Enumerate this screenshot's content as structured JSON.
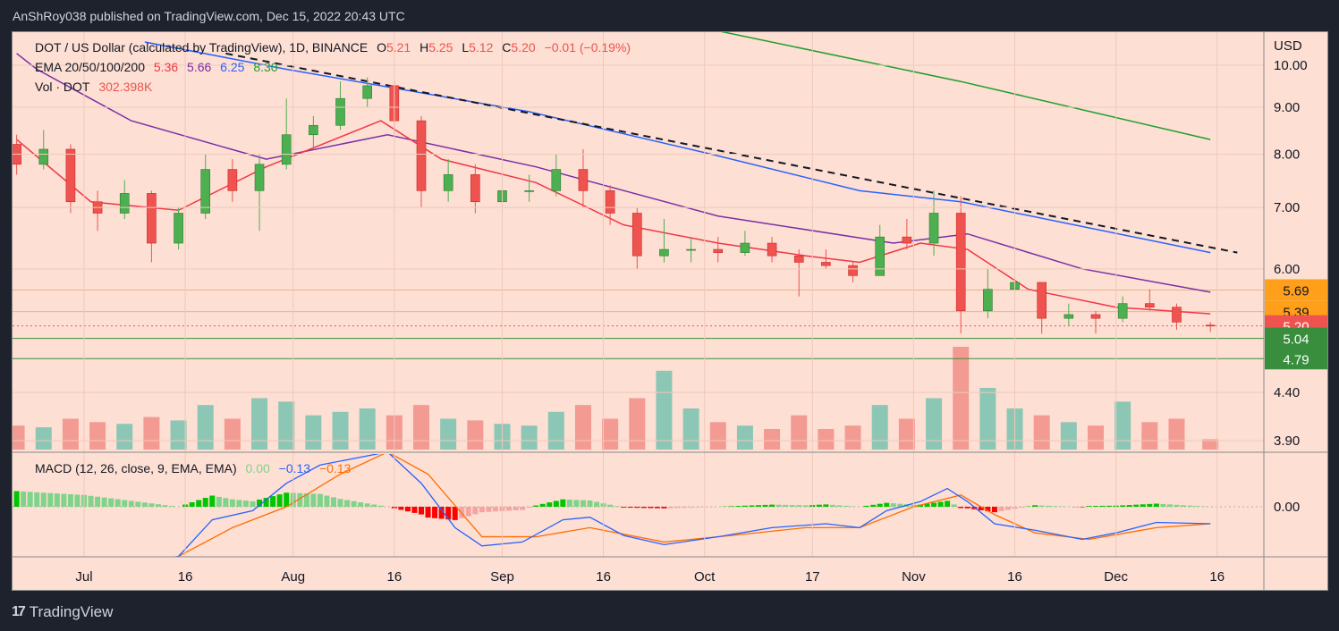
{
  "header": {
    "published": "AnShRoy038 published on TradingView.com, Dec 15, 2022 20:43 UTC"
  },
  "legend": {
    "symbol": "DOT / US Dollar (calculated by TradingView), 1D, BINANCE",
    "o_label": "O",
    "o": "5.21",
    "h_label": "H",
    "h": "5.25",
    "l_label": "L",
    "l": "5.12",
    "c_label": "C",
    "c": "5.20",
    "change": "−0.01 (−0.19%)",
    "ema_label": "EMA 20/50/100/200",
    "ema20": "5.36",
    "ema50": "5.66",
    "ema100": "6.25",
    "ema200": "8.30",
    "vol_label": "Vol · DOT",
    "vol": "302.398K",
    "macd_label": "MACD (12, 26, close, 9, EMA, EMA)",
    "macd_hist": "0.00",
    "macd": "−0.13",
    "macd_signal": "−0.13"
  },
  "brand": {
    "name": "TradingView"
  },
  "colors": {
    "up": "#26a69a",
    "up_candle": "#4caf50",
    "down": "#ef5350",
    "ema20": "#f23645",
    "ema50": "#7b2fa6",
    "ema100": "#2962ff",
    "ema200": "#1e9e2e",
    "macd": "#2962ff",
    "signal": "#ff6d00",
    "hist_up": "#00c600",
    "hist_up_light": "#7fd38a",
    "hist_down": "#ff0000",
    "hist_down_light": "#f5a3a3",
    "bg": "#fddfd3",
    "orange_level": "#ff9f1a",
    "green_level": "#388e3c"
  },
  "chart_data": {
    "type": "candlestick",
    "price_scale": "log",
    "currency": "USD",
    "y_ticks": [
      "10.00",
      "9.00",
      "8.00",
      "7.00",
      "6.00",
      "4.40",
      "3.90"
    ],
    "x_ticks": [
      {
        "date": "2022-07-01",
        "label": "Jul"
      },
      {
        "date": "2022-07-16",
        "label": "16"
      },
      {
        "date": "2022-08-01",
        "label": "Aug"
      },
      {
        "date": "2022-08-16",
        "label": "16"
      },
      {
        "date": "2022-09-01",
        "label": "Sep"
      },
      {
        "date": "2022-09-16",
        "label": "16"
      },
      {
        "date": "2022-10-01",
        "label": "Oct"
      },
      {
        "date": "2022-10-17",
        "label": "17"
      },
      {
        "date": "2022-11-01",
        "label": "Nov"
      },
      {
        "date": "2022-11-16",
        "label": "16"
      },
      {
        "date": "2022-12-01",
        "label": "Dec"
      },
      {
        "date": "2022-12-16",
        "label": "16"
      }
    ],
    "candles_columns": [
      "date",
      "open",
      "high",
      "low",
      "close",
      "volume_k"
    ],
    "candles": [
      [
        "2022-06-21",
        8.2,
        8.4,
        7.6,
        7.8,
        700
      ],
      [
        "2022-06-25",
        7.8,
        8.5,
        7.7,
        8.1,
        650
      ],
      [
        "2022-06-29",
        8.1,
        8.2,
        6.9,
        7.1,
        900
      ],
      [
        "2022-07-03",
        7.1,
        7.3,
        6.6,
        6.9,
        800
      ],
      [
        "2022-07-07",
        6.9,
        7.5,
        6.8,
        7.25,
        750
      ],
      [
        "2022-07-11",
        7.25,
        7.3,
        6.1,
        6.4,
        950
      ],
      [
        "2022-07-15",
        6.4,
        7.0,
        6.3,
        6.9,
        850
      ],
      [
        "2022-07-19",
        6.9,
        8.0,
        6.8,
        7.7,
        1300
      ],
      [
        "2022-07-23",
        7.7,
        7.9,
        7.1,
        7.3,
        900
      ],
      [
        "2022-07-27",
        7.3,
        8.0,
        6.6,
        7.8,
        1500
      ],
      [
        "2022-07-31",
        7.8,
        9.2,
        7.7,
        8.4,
        1400
      ],
      [
        "2022-08-04",
        8.4,
        8.8,
        8.1,
        8.6,
        1000
      ],
      [
        "2022-08-08",
        8.6,
        9.6,
        8.5,
        9.2,
        1100
      ],
      [
        "2022-08-12",
        9.2,
        9.7,
        9.0,
        9.5,
        1200
      ],
      [
        "2022-08-16",
        9.5,
        9.6,
        8.4,
        8.7,
        1000
      ],
      [
        "2022-08-20",
        8.7,
        8.8,
        7.0,
        7.3,
        1300
      ],
      [
        "2022-08-24",
        7.3,
        7.9,
        7.1,
        7.6,
        900
      ],
      [
        "2022-08-28",
        7.6,
        7.8,
        6.9,
        7.1,
        850
      ],
      [
        "2022-09-01",
        7.1,
        7.5,
        6.9,
        7.3,
        750
      ],
      [
        "2022-09-05",
        7.3,
        7.6,
        7.1,
        7.3,
        700
      ],
      [
        "2022-09-09",
        7.3,
        8.0,
        7.2,
        7.7,
        1100
      ],
      [
        "2022-09-13",
        7.7,
        8.1,
        7.0,
        7.3,
        1300
      ],
      [
        "2022-09-17",
        7.3,
        7.4,
        6.7,
        6.9,
        900
      ],
      [
        "2022-09-21",
        6.9,
        7.0,
        6.0,
        6.2,
        1500
      ],
      [
        "2022-09-25",
        6.2,
        6.8,
        6.1,
        6.3,
        2300
      ],
      [
        "2022-09-29",
        6.3,
        6.5,
        6.1,
        6.3,
        1200
      ],
      [
        "2022-10-03",
        6.3,
        6.5,
        6.1,
        6.25,
        800
      ],
      [
        "2022-10-07",
        6.25,
        6.6,
        6.2,
        6.4,
        700
      ],
      [
        "2022-10-11",
        6.4,
        6.5,
        6.1,
        6.2,
        600
      ],
      [
        "2022-10-15",
        6.2,
        6.3,
        5.6,
        6.1,
        1000
      ],
      [
        "2022-10-19",
        6.1,
        6.3,
        6.0,
        6.05,
        600
      ],
      [
        "2022-10-23",
        6.05,
        6.1,
        5.8,
        5.9,
        700
      ],
      [
        "2022-10-27",
        5.9,
        6.7,
        5.9,
        6.5,
        1300
      ],
      [
        "2022-10-31",
        6.5,
        6.8,
        6.3,
        6.4,
        900
      ],
      [
        "2022-11-04",
        6.4,
        7.3,
        6.2,
        6.9,
        1500
      ],
      [
        "2022-11-08",
        6.9,
        7.2,
        5.1,
        5.4,
        3000
      ],
      [
        "2022-11-12",
        5.4,
        6.0,
        5.3,
        5.7,
        1800
      ],
      [
        "2022-11-16",
        5.7,
        6.0,
        5.6,
        5.8,
        1200
      ],
      [
        "2022-11-20",
        5.8,
        5.8,
        5.1,
        5.3,
        1000
      ],
      [
        "2022-11-24",
        5.3,
        5.5,
        5.2,
        5.35,
        800
      ],
      [
        "2022-11-28",
        5.35,
        5.4,
        5.1,
        5.3,
        700
      ],
      [
        "2022-12-02",
        5.3,
        5.6,
        5.25,
        5.5,
        1400
      ],
      [
        "2022-12-06",
        5.5,
        5.7,
        5.4,
        5.45,
        800
      ],
      [
        "2022-12-10",
        5.45,
        5.5,
        5.15,
        5.25,
        900
      ],
      [
        "2022-12-15",
        5.21,
        5.25,
        5.12,
        5.2,
        302.398
      ]
    ],
    "ema20": [
      [
        "2022-06-21",
        8.3
      ],
      [
        "2022-07-02",
        7.1
      ],
      [
        "2022-07-15",
        6.95
      ],
      [
        "2022-07-28",
        7.75
      ],
      [
        "2022-08-14",
        8.7
      ],
      [
        "2022-08-23",
        7.9
      ],
      [
        "2022-09-06",
        7.45
      ],
      [
        "2022-09-19",
        6.7
      ],
      [
        "2022-10-03",
        6.4
      ],
      [
        "2022-10-16",
        6.2
      ],
      [
        "2022-10-24",
        6.1
      ],
      [
        "2022-11-02",
        6.4
      ],
      [
        "2022-11-09",
        6.3
      ],
      [
        "2022-11-18",
        5.7
      ],
      [
        "2022-12-01",
        5.45
      ],
      [
        "2022-12-15",
        5.36
      ]
    ],
    "ema50": [
      [
        "2022-06-21",
        10.3
      ],
      [
        "2022-06-24",
        9.9
      ],
      [
        "2022-07-08",
        8.7
      ],
      [
        "2022-07-28",
        7.9
      ],
      [
        "2022-08-15",
        8.4
      ],
      [
        "2022-09-06",
        7.75
      ],
      [
        "2022-10-03",
        6.85
      ],
      [
        "2022-10-29",
        6.4
      ],
      [
        "2022-11-09",
        6.55
      ],
      [
        "2022-11-26",
        6.0
      ],
      [
        "2022-12-15",
        5.66
      ]
    ],
    "ema100": [
      [
        "2022-07-10",
        10.6
      ],
      [
        "2022-07-31",
        9.9
      ],
      [
        "2022-09-05",
        8.9
      ],
      [
        "2022-10-02",
        8.0
      ],
      [
        "2022-10-24",
        7.3
      ],
      [
        "2022-11-08",
        7.1
      ],
      [
        "2022-12-15",
        6.25
      ]
    ],
    "ema200": [
      [
        "2022-10-03",
        10.9
      ],
      [
        "2022-11-08",
        9.6
      ],
      [
        "2022-12-15",
        8.3
      ]
    ],
    "trendline": [
      [
        "2022-07-22",
        10.3
      ],
      [
        "2022-12-19",
        6.25
      ]
    ],
    "levels": [
      {
        "value": 5.69,
        "label": "5.69",
        "kind": "resistance"
      },
      {
        "value": 5.39,
        "label": "5.39",
        "kind": "resistance"
      },
      {
        "value": 5.2,
        "label": "5.20",
        "kind": "last"
      },
      {
        "value": 5.04,
        "label": "5.04",
        "kind": "support"
      },
      {
        "value": 4.79,
        "label": "4.79",
        "kind": "support"
      }
    ],
    "macd": {
      "y_ticks": [
        "0.00"
      ],
      "macd": [
        [
          "2022-06-21",
          -0.6
        ],
        [
          "2022-07-01",
          -0.5
        ],
        [
          "2022-07-15",
          -0.38
        ],
        [
          "2022-07-20",
          -0.1
        ],
        [
          "2022-07-26",
          -0.03
        ],
        [
          "2022-07-31",
          0.18
        ],
        [
          "2022-08-05",
          0.32
        ],
        [
          "2022-08-15",
          0.42
        ],
        [
          "2022-08-20",
          0.18
        ],
        [
          "2022-08-25",
          -0.16
        ],
        [
          "2022-08-29",
          -0.3
        ],
        [
          "2022-09-04",
          -0.27
        ],
        [
          "2022-09-10",
          -0.1
        ],
        [
          "2022-09-14",
          -0.08
        ],
        [
          "2022-09-19",
          -0.22
        ],
        [
          "2022-09-25",
          -0.29
        ],
        [
          "2022-10-03",
          -0.23
        ],
        [
          "2022-10-11",
          -0.16
        ],
        [
          "2022-10-19",
          -0.13
        ],
        [
          "2022-10-24",
          -0.16
        ],
        [
          "2022-10-28",
          -0.03
        ],
        [
          "2022-11-02",
          0.04
        ],
        [
          "2022-11-06",
          0.14
        ],
        [
          "2022-11-09",
          0.04
        ],
        [
          "2022-11-13",
          -0.13
        ],
        [
          "2022-11-19",
          -0.18
        ],
        [
          "2022-11-26",
          -0.25
        ],
        [
          "2022-12-01",
          -0.2
        ],
        [
          "2022-12-07",
          -0.12
        ],
        [
          "2022-12-15",
          -0.13
        ]
      ],
      "signal": [
        [
          "2022-06-21",
          -0.8
        ],
        [
          "2022-07-01",
          -0.65
        ],
        [
          "2022-07-15",
          -0.38
        ],
        [
          "2022-07-23",
          -0.16
        ],
        [
          "2022-07-31",
          0.0
        ],
        [
          "2022-08-08",
          0.25
        ],
        [
          "2022-08-15",
          0.42
        ],
        [
          "2022-08-21",
          0.25
        ],
        [
          "2022-08-29",
          -0.23
        ],
        [
          "2022-09-06",
          -0.23
        ],
        [
          "2022-09-14",
          -0.16
        ],
        [
          "2022-09-25",
          -0.27
        ],
        [
          "2022-10-05",
          -0.22
        ],
        [
          "2022-10-16",
          -0.16
        ],
        [
          "2022-10-24",
          -0.16
        ],
        [
          "2022-11-01",
          0.0
        ],
        [
          "2022-11-08",
          0.09
        ],
        [
          "2022-11-13",
          -0.06
        ],
        [
          "2022-11-19",
          -0.2
        ],
        [
          "2022-11-27",
          -0.25
        ],
        [
          "2022-12-07",
          -0.16
        ],
        [
          "2022-12-15",
          -0.13
        ]
      ]
    }
  }
}
